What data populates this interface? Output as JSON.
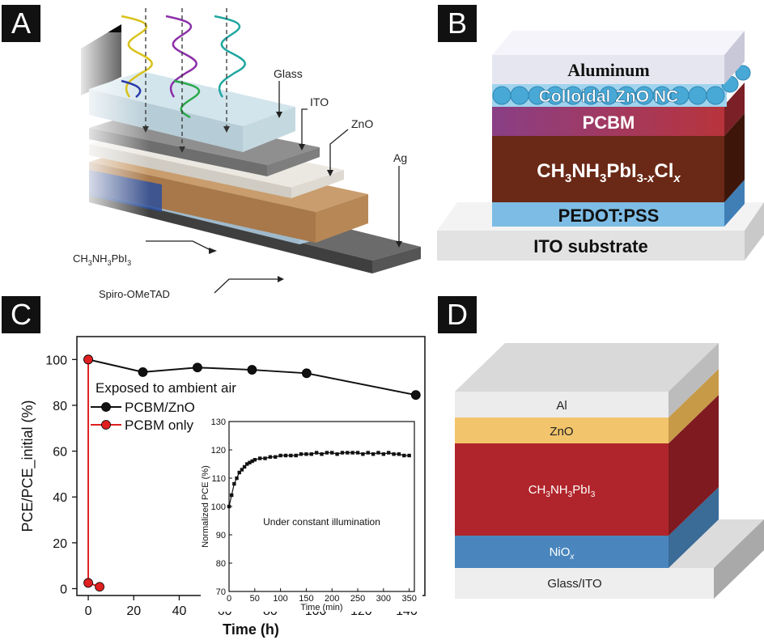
{
  "panels": {
    "a": {
      "label": "A",
      "layers": [
        "Glass",
        "ITO",
        "ZnO",
        "Ag",
        "CH3NH3PbI3",
        "Spiro-OMeTAD"
      ],
      "colors": {
        "glass": "#cfe3ea",
        "ito": "#8a8a8a",
        "zno": "#e9e6e0",
        "perovskite": "#c49a6c",
        "spiro": "#bdd5e3",
        "ag": "#555555"
      }
    },
    "b": {
      "label": "B",
      "layers": [
        "Aluminum",
        "Colloidal ZnO NC",
        "PCBM",
        "CH3NH3PbI3-xClx",
        "PEDOT:PSS",
        "ITO substrate"
      ],
      "colors": {
        "aluminum": "#e8e8f2",
        "zno": "#49a9d6",
        "pcbm": "#9b3a55",
        "perovskite": "#6e2a17",
        "pedot": "#78b8e0",
        "ito": "#e4e4e4"
      }
    },
    "c": {
      "label": "C"
    },
    "d": {
      "label": "D",
      "layers": [
        "Al",
        "ZnO",
        "CH3NH3PbI3",
        "NiOx",
        "Glass/ITO"
      ],
      "colors": {
        "al": "#e9e9e9",
        "zno": "#f2c46b",
        "perovskite": "#b0252b",
        "niox": "#4a86bd",
        "glass": "#eeeeee"
      }
    }
  },
  "chart_data": [
    {
      "type": "line",
      "xlabel": "Time (h)",
      "ylabel": "PCE/PCE_initial (%)",
      "xlim": [
        -5,
        148
      ],
      "ylim": [
        -3,
        110
      ],
      "xticks": [
        0,
        20,
        40,
        60,
        80,
        100,
        120,
        140
      ],
      "yticks": [
        0,
        20,
        40,
        60,
        80,
        100
      ],
      "annotation": "Exposed to ambient air",
      "legend_position": "upper-left",
      "series": [
        {
          "name": "PCBM/ZnO",
          "color": "#111111",
          "x": [
            0,
            24,
            48,
            72,
            96,
            144
          ],
          "y": [
            100,
            94.5,
            96.5,
            95.5,
            94,
            84.5
          ]
        },
        {
          "name": "PCBM only",
          "color": "#e02020",
          "x": [
            0,
            0,
            5
          ],
          "y": [
            100,
            2.5,
            0.8
          ]
        }
      ]
    },
    {
      "type": "line",
      "xlabel": "Time (min)",
      "ylabel": "Normalized PCE (%)",
      "xlim": [
        0,
        360
      ],
      "ylim": [
        70,
        130
      ],
      "xticks": [
        0,
        50,
        100,
        150,
        200,
        250,
        300,
        350
      ],
      "yticks": [
        70,
        80,
        90,
        100,
        110,
        120,
        130
      ],
      "annotation": "Under constant illumination",
      "series": [
        {
          "color": "#111111",
          "x": [
            0,
            5,
            10,
            15,
            20,
            25,
            30,
            35,
            40,
            45,
            50,
            60,
            70,
            80,
            90,
            100,
            110,
            120,
            130,
            140,
            150,
            160,
            170,
            180,
            190,
            200,
            210,
            220,
            230,
            240,
            250,
            260,
            270,
            280,
            290,
            300,
            310,
            320,
            330,
            340,
            350
          ],
          "y": [
            100,
            104,
            108,
            110,
            112,
            113,
            114,
            115,
            115.5,
            116,
            116.5,
            117,
            117,
            117.5,
            117.5,
            118,
            118,
            118,
            118,
            118.5,
            118.5,
            118.5,
            119,
            118.5,
            119,
            119,
            118.5,
            119,
            119,
            119,
            119,
            118.5,
            119,
            118.5,
            119,
            118.5,
            119,
            118.5,
            118.5,
            118,
            118
          ]
        }
      ]
    }
  ]
}
